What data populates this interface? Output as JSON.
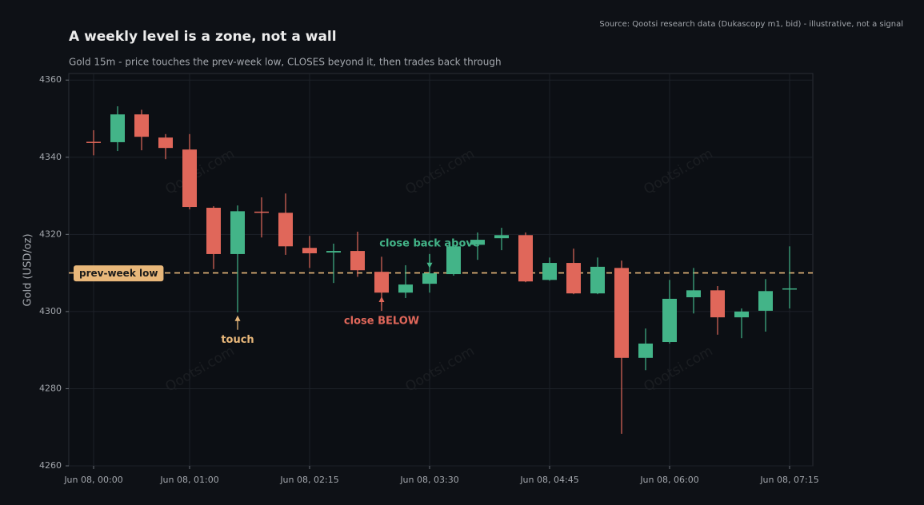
{
  "chart_data": {
    "type": "candlestick",
    "title": "A weekly level is a zone, not a wall",
    "subtitle": "Gold 15m - price touches the prev-week low, CLOSES beyond it, then trades back through",
    "source": "Source: Qootsi research data (Dukascopy m1, bid) - illustrative, not a signal",
    "watermark": "Qootsi.com",
    "y_label": "Gold (USD/oz)",
    "x": [
      "Jun 08, 00:00",
      "Jun 08, 00:15",
      "Jun 08, 00:30",
      "Jun 08, 00:45",
      "Jun 08, 01:00",
      "Jun 08, 01:15",
      "Jun 08, 01:30",
      "Jun 08, 01:45",
      "Jun 08, 02:00",
      "Jun 08, 02:15",
      "Jun 08, 02:30",
      "Jun 08, 02:45",
      "Jun 08, 03:00",
      "Jun 08, 03:15",
      "Jun 08, 03:30",
      "Jun 08, 03:45",
      "Jun 08, 04:00",
      "Jun 08, 04:15",
      "Jun 08, 04:30",
      "Jun 08, 04:45",
      "Jun 08, 05:00",
      "Jun 08, 05:15",
      "Jun 08, 05:30",
      "Jun 08, 05:45",
      "Jun 08, 06:00",
      "Jun 08, 06:15",
      "Jun 08, 06:30",
      "Jun 08, 06:45",
      "Jun 08, 07:00",
      "Jun 08, 07:15"
    ],
    "open": [
      4344.0,
      4343.9,
      4351.1,
      4345.1,
      4342.0,
      4326.9,
      4314.9,
      4325.9,
      4325.6,
      4316.5,
      4315.3,
      4315.7,
      4310.3,
      4304.9,
      4307.2,
      4309.7,
      4317.3,
      4319.0,
      4319.8,
      4308.2,
      4312.6,
      4304.7,
      4311.3,
      4288.0,
      4292.1,
      4303.7,
      4305.5,
      4298.5,
      4300.2,
      4305.7
    ],
    "high": [
      4347.0,
      4353.2,
      4352.3,
      4346.0,
      4346.0,
      4327.3,
      4327.5,
      4329.6,
      4330.6,
      4319.6,
      4317.6,
      4320.7,
      4314.2,
      4312.0,
      4314.8,
      4317.1,
      4320.5,
      4321.7,
      4320.5,
      4314.0,
      4316.3,
      4314.0,
      4313.2,
      4295.6,
      4308.2,
      4311.3,
      4306.6,
      4300.8,
      4308.4,
      4316.9
    ],
    "low": [
      4340.5,
      4341.6,
      4341.8,
      4339.5,
      4326.5,
      4311.0,
      4299.8,
      4319.2,
      4314.7,
      4311.3,
      4307.4,
      4309.0,
      4301.6,
      4303.5,
      4304.9,
      4309.3,
      4313.4,
      4315.9,
      4307.6,
      4308.0,
      4304.5,
      4304.5,
      4268.3,
      4284.8,
      4291.7,
      4299.5,
      4294.0,
      4293.1,
      4294.8,
      4300.8
    ],
    "close": [
      4343.8,
      4351.1,
      4345.3,
      4342.4,
      4327.1,
      4314.9,
      4326.0,
      4325.7,
      4316.9,
      4315.1,
      4315.7,
      4310.7,
      4304.9,
      4307.0,
      4309.9,
      4316.9,
      4318.6,
      4319.8,
      4307.8,
      4312.6,
      4304.7,
      4311.6,
      4288.0,
      4291.7,
      4303.3,
      4305.5,
      4298.5,
      4300.0,
      4305.3,
      4306.0
    ],
    "up_color": "#43b488",
    "down_color": "#e0675a",
    "ylim": [
      4260,
      4361.7
    ],
    "yticks": [
      4260,
      4280,
      4300,
      4320,
      4340,
      4360
    ],
    "xticks": [
      "Jun 08, 00:00",
      "Jun 08, 01:00",
      "Jun 08, 02:15",
      "Jun 08, 03:30",
      "Jun 08, 04:45",
      "Jun 08, 06:00",
      "Jun 08, 07:15"
    ],
    "grid": true,
    "reference_line": {
      "value": 4310,
      "label": "prev-week low",
      "color": "#e8b77a"
    },
    "annotations": [
      {
        "text": "touch",
        "x": "Jun 08, 01:30",
        "y": 4299,
        "color": "#e8b77a"
      },
      {
        "text": "close BELOW",
        "x": "Jun 08, 03:00",
        "y": 4303.9,
        "color": "#e0675a"
      },
      {
        "text": "close back above",
        "x": "Jun 08, 03:30",
        "y": 4311.2,
        "color": "#43b488"
      }
    ]
  }
}
